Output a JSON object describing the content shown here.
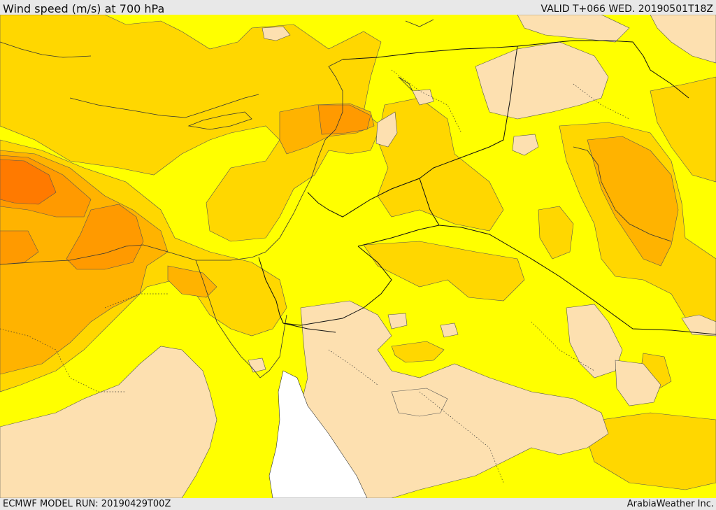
{
  "header": {
    "title": "Wind speed (m/s) at 700 hPa",
    "valid_time": "VALID T+066 WED. 20190501T18Z"
  },
  "footer": {
    "model_run": "ECMWF MODEL RUN: 20190429T00Z",
    "credit": "ArabiaWeather Inc."
  },
  "palette": {
    "calm": "#fde0b0",
    "light": "#ffff00",
    "moderate": "#ffd700",
    "fresh": "#ffb300",
    "strong": "#ff9a00",
    "very_strong": "#ff7a00",
    "sea_no_data": "#ffffff"
  }
}
